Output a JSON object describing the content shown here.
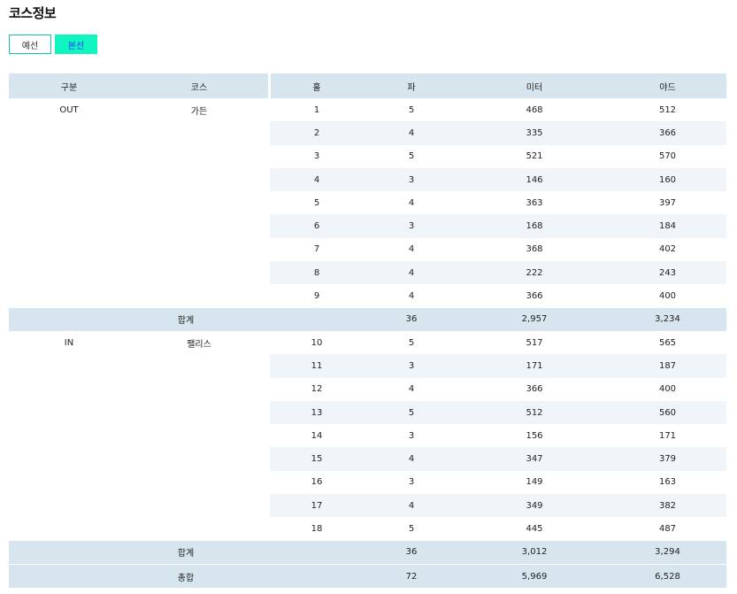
{
  "page": {
    "title": "코스정보"
  },
  "tabs": [
    {
      "label": "예선",
      "active": false
    },
    {
      "label": "본선",
      "active": true
    }
  ],
  "table": {
    "headers": {
      "gubun": "구분",
      "course": "코스",
      "hole": "홀",
      "par": "파",
      "meter": "미터",
      "yard": "야드"
    },
    "sections": [
      {
        "gubun": "OUT",
        "course": "가든",
        "holes": [
          {
            "hole": "1",
            "par": "5",
            "meter": "468",
            "yard": "512"
          },
          {
            "hole": "2",
            "par": "4",
            "meter": "335",
            "yard": "366"
          },
          {
            "hole": "3",
            "par": "5",
            "meter": "521",
            "yard": "570"
          },
          {
            "hole": "4",
            "par": "3",
            "meter": "146",
            "yard": "160"
          },
          {
            "hole": "5",
            "par": "4",
            "meter": "363",
            "yard": "397"
          },
          {
            "hole": "6",
            "par": "3",
            "meter": "168",
            "yard": "184"
          },
          {
            "hole": "7",
            "par": "4",
            "meter": "368",
            "yard": "402"
          },
          {
            "hole": "8",
            "par": "4",
            "meter": "222",
            "yard": "243"
          },
          {
            "hole": "9",
            "par": "4",
            "meter": "366",
            "yard": "400"
          }
        ],
        "subtotal": {
          "label": "합계",
          "par": "36",
          "meter": "2,957",
          "yard": "3,234"
        }
      },
      {
        "gubun": "IN",
        "course": "팰리스",
        "holes": [
          {
            "hole": "10",
            "par": "5",
            "meter": "517",
            "yard": "565"
          },
          {
            "hole": "11",
            "par": "3",
            "meter": "171",
            "yard": "187"
          },
          {
            "hole": "12",
            "par": "4",
            "meter": "366",
            "yard": "400"
          },
          {
            "hole": "13",
            "par": "5",
            "meter": "512",
            "yard": "560"
          },
          {
            "hole": "14",
            "par": "3",
            "meter": "156",
            "yard": "171"
          },
          {
            "hole": "15",
            "par": "4",
            "meter": "347",
            "yard": "379"
          },
          {
            "hole": "16",
            "par": "3",
            "meter": "149",
            "yard": "163"
          },
          {
            "hole": "17",
            "par": "4",
            "meter": "349",
            "yard": "382"
          },
          {
            "hole": "18",
            "par": "5",
            "meter": "445",
            "yard": "487"
          }
        ],
        "subtotal": {
          "label": "합계",
          "par": "36",
          "meter": "3,012",
          "yard": "3,294"
        }
      }
    ],
    "total": {
      "label": "총합",
      "par": "72",
      "meter": "5,969",
      "yard": "6,528"
    }
  }
}
